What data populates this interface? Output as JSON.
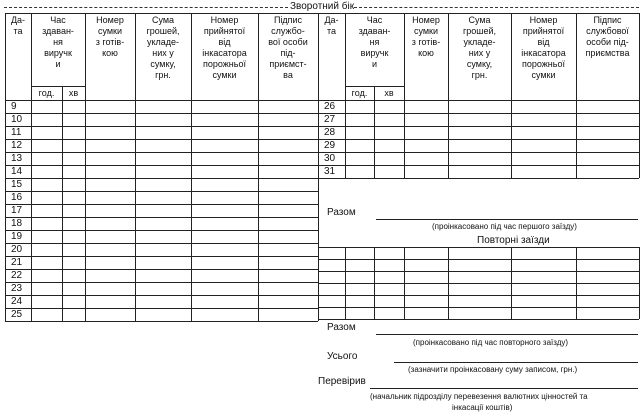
{
  "form": {
    "title": "Зворотний бік",
    "left_table": {
      "headers": [
        "Да-\nта",
        "Час\nздаван-\nня\nвиручк\nи",
        "Номер\nсумки\nз готів-\nкою",
        "Сума\nгрошей,\nукладе-\nних у\nсумку,\nгрн.",
        "Номер\nприйнятої\nвід\nінкасатора\nпорожньої\nсумки",
        "Підпис\nслужбо-\nвої особи\nпід-\nприємст-\nва"
      ],
      "subheaders": [
        "год.",
        "хв"
      ],
      "rows": [
        "9",
        "10",
        "11",
        "12",
        "13",
        "14",
        "15",
        "16",
        "17",
        "18",
        "19",
        "20",
        "21",
        "22",
        "23",
        "24",
        "25"
      ]
    },
    "right_table": {
      "headers": [
        "Да-\nта",
        "Час\nздаван-\nня\nвиручк\nи",
        "Номер\nсумки\nз готів-\nкою",
        "Сума\nгрошей,\nукладе-\nних у\nсумку,\nгрн.",
        "Номер\nприйнятої\nвід\nінкасатора\nпорожньої\nсумки",
        "Підпис\nслужбової\nособи під-\nприємства"
      ],
      "subheaders": [
        "год.",
        "хв"
      ],
      "rows": [
        "26",
        "27",
        "28",
        "29",
        "30",
        "31"
      ]
    },
    "total_first": {
      "label": "Разом",
      "note": "(проінкасовано під час першого заїзду)"
    },
    "repeat_title": "Повторні заїзди",
    "total_repeat": {
      "label": "Разом",
      "note": "(проінкасовано під час повторного заїзду)"
    },
    "grand_total": {
      "label": "Усього",
      "note": "(зазначити проінкасовану суму записом, грн.)"
    },
    "checked": {
      "label": "Перевірив",
      "note_line1": "(начальник підрозділу перевезення валютних цінностей та",
      "note_line2": "інкасації коштів)"
    }
  }
}
